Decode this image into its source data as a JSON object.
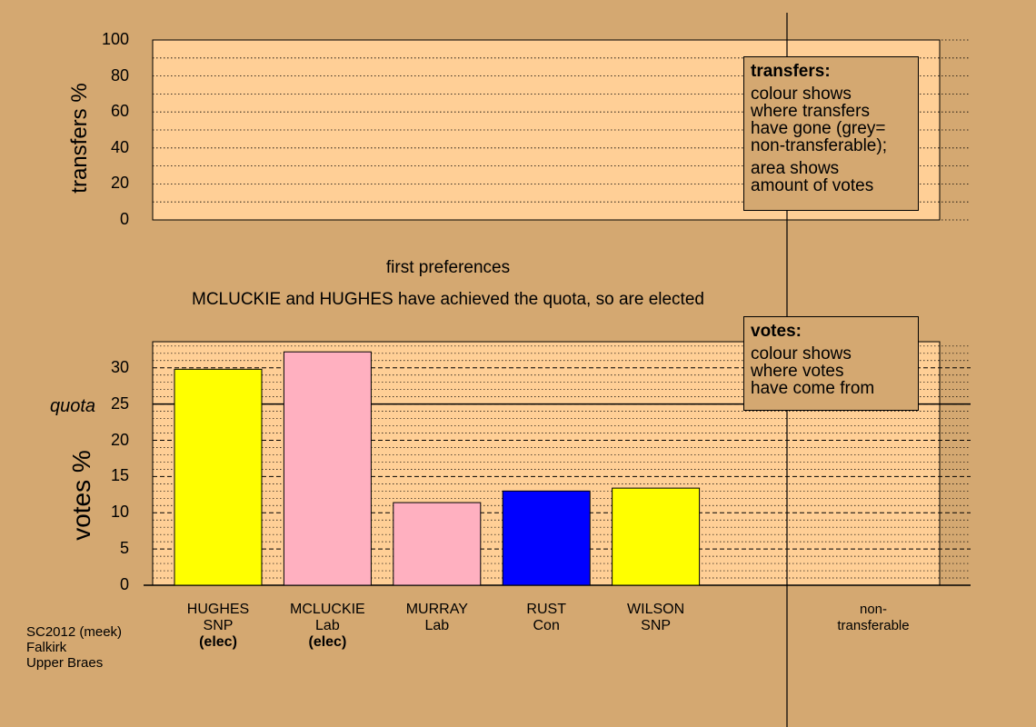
{
  "top": {
    "axis_label": "transfers %",
    "ticks": [
      "100",
      "80",
      "60",
      "40",
      "20",
      "0"
    ],
    "ylim": [
      0,
      100
    ]
  },
  "legend_transfers": {
    "title": "transfers:",
    "lines_1": [
      "colour shows",
      "where transfers",
      "have gone (grey=",
      "non-transferable);"
    ],
    "lines_2": [
      "area shows",
      "amount of votes"
    ]
  },
  "captions": {
    "line1": "first preferences",
    "line2": "MCLUCKIE and HUGHES have achieved the quota, so are elected"
  },
  "legend_votes": {
    "title": "votes:",
    "lines": [
      "colour shows",
      "where votes",
      "have come from"
    ]
  },
  "bottom": {
    "axis_label": "votes %",
    "quota_label": "quota",
    "ticks": [
      "30",
      "25",
      "20",
      "15",
      "10",
      "5",
      "0"
    ]
  },
  "footer": {
    "lines": [
      "SC2012 (meek)",
      "Falkirk",
      "Upper Braes"
    ]
  },
  "nontransferable": {
    "line1": "non-",
    "line2": "transferable"
  },
  "colors": {
    "background": "#D4A871",
    "plot_area": "#FFCF96",
    "snp": "#FFFF00",
    "lab": "#FFB0C0",
    "con": "#0000FF"
  },
  "chart_data": {
    "type": "bar",
    "categories": [
      "HUGHES",
      "MCLUCKIE",
      "MURRAY",
      "RUST",
      "WILSON"
    ],
    "parties": [
      "SNP",
      "Lab",
      "Lab",
      "Con",
      "SNP"
    ],
    "elected": [
      "(elec)",
      "(elec)",
      "",
      "",
      ""
    ],
    "values": [
      29.8,
      32.2,
      11.4,
      13.0,
      13.4
    ],
    "bar_colors": [
      "#FFFF00",
      "#FFB0C0",
      "#FFB0C0",
      "#0000FF",
      "#FFFF00"
    ],
    "quota": 25,
    "ylabel": "votes %",
    "ylim": [
      0,
      33.6
    ],
    "grid": true
  }
}
